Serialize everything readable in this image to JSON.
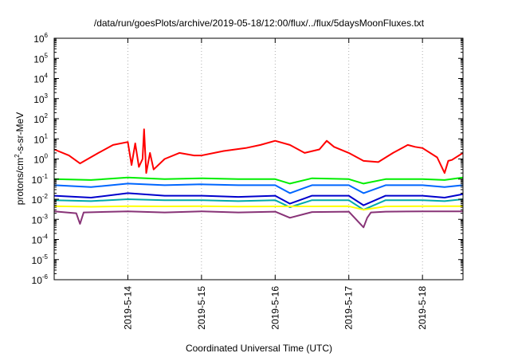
{
  "chart_data": {
    "type": "line",
    "title": "/data/run/goesPlots/archive/2019-05-18/12:00/flux/../flux/5daysMoonFluxes.txt",
    "xlabel": "Coordinated Universal Time (UTC)",
    "ylabel": "protons/cm²-s-sr-MeV",
    "ylabel_parts": {
      "base": "protons/cm",
      "sup": "2",
      "rest": "-s-sr-MeV"
    },
    "yscale": "log",
    "ylim_exp": [
      -6,
      6
    ],
    "ytick_labels": [
      {
        "base": "10",
        "exp": "-6"
      },
      {
        "base": "10",
        "exp": "-5"
      },
      {
        "base": "10",
        "exp": "-4"
      },
      {
        "base": "10",
        "exp": "-3"
      },
      {
        "base": "10",
        "exp": "-2"
      },
      {
        "base": "10",
        "exp": "-1"
      },
      {
        "base": "10",
        "exp": "0"
      },
      {
        "base": "10",
        "exp": "1"
      },
      {
        "base": "10",
        "exp": "2"
      },
      {
        "base": "10",
        "exp": "3"
      },
      {
        "base": "10",
        "exp": "4"
      },
      {
        "base": "10",
        "exp": "5"
      },
      {
        "base": "10",
        "exp": "6"
      }
    ],
    "x_range_days": [
      13.0,
      18.55
    ],
    "xtick_labels": [
      "2019-5-14",
      "2019-5-15",
      "2019-5-16",
      "2019-5-17",
      "2019-5-18"
    ],
    "xtick_days": [
      14,
      15,
      16,
      17,
      18
    ],
    "grid": "vertical-dotted",
    "legend": "none",
    "series": [
      {
        "color": "#ff0000",
        "x": [
          13.0,
          13.2,
          13.35,
          13.6,
          13.8,
          14.0,
          14.05,
          14.1,
          14.15,
          14.2,
          14.22,
          14.25,
          14.3,
          14.35,
          14.5,
          14.7,
          14.9,
          15.0,
          15.3,
          15.6,
          15.8,
          16.0,
          16.2,
          16.4,
          16.6,
          16.7,
          16.8,
          17.0,
          17.2,
          17.4,
          17.6,
          17.8,
          17.9,
          18.0,
          18.2,
          18.3,
          18.35,
          18.4,
          18.55
        ],
        "y": [
          3,
          1.5,
          0.6,
          2,
          5,
          7,
          0.5,
          6,
          0.4,
          1,
          30,
          0.2,
          2,
          0.3,
          1,
          2,
          1.5,
          1.5,
          2.5,
          3.5,
          5,
          8,
          5,
          2,
          3,
          8,
          4,
          2,
          0.8,
          0.7,
          2,
          5,
          4,
          3.5,
          1.2,
          0.2,
          0.8,
          0.9,
          2
        ]
      },
      {
        "color": "#00ee00",
        "x": [
          13.0,
          13.5,
          14.0,
          14.5,
          15.0,
          15.5,
          16.0,
          16.2,
          16.5,
          17.0,
          17.2,
          17.5,
          18.0,
          18.3,
          18.55
        ],
        "y": [
          0.1,
          0.09,
          0.12,
          0.1,
          0.11,
          0.1,
          0.1,
          0.06,
          0.11,
          0.1,
          0.06,
          0.1,
          0.1,
          0.09,
          0.12
        ]
      },
      {
        "color": "#0066ff",
        "x": [
          13.0,
          13.5,
          14.0,
          14.5,
          15.0,
          15.5,
          16.0,
          16.2,
          16.5,
          17.0,
          17.2,
          17.5,
          18.0,
          18.3,
          18.55
        ],
        "y": [
          0.05,
          0.04,
          0.06,
          0.05,
          0.055,
          0.05,
          0.05,
          0.02,
          0.05,
          0.05,
          0.02,
          0.05,
          0.05,
          0.04,
          0.05
        ]
      },
      {
        "color": "#0000cc",
        "x": [
          13.0,
          13.5,
          14.0,
          14.5,
          15.0,
          15.5,
          16.0,
          16.2,
          16.5,
          17.0,
          17.2,
          17.5,
          18.0,
          18.3,
          18.55
        ],
        "y": [
          0.015,
          0.012,
          0.02,
          0.015,
          0.015,
          0.013,
          0.015,
          0.006,
          0.015,
          0.015,
          0.005,
          0.015,
          0.015,
          0.012,
          0.018
        ]
      },
      {
        "color": "#00aaaa",
        "x": [
          13.0,
          13.5,
          14.0,
          14.5,
          15.0,
          15.5,
          16.0,
          16.2,
          16.5,
          17.0,
          17.2,
          17.5,
          18.0,
          18.3,
          18.55
        ],
        "y": [
          0.009,
          0.008,
          0.01,
          0.009,
          0.009,
          0.008,
          0.009,
          0.004,
          0.009,
          0.009,
          0.003,
          0.009,
          0.009,
          0.008,
          0.01
        ]
      },
      {
        "color": "#ffff00",
        "x": [
          13.0,
          13.5,
          14.0,
          14.5,
          15.0,
          15.5,
          16.0,
          16.5,
          17.0,
          17.2,
          17.5,
          18.0,
          18.55
        ],
        "y": [
          0.0045,
          0.0042,
          0.0045,
          0.0044,
          0.0045,
          0.0043,
          0.0044,
          0.0044,
          0.0045,
          0.003,
          0.0044,
          0.0045,
          0.0045
        ]
      },
      {
        "color": "#883377",
        "x": [
          13.0,
          13.3,
          13.35,
          13.4,
          14.0,
          14.5,
          15.0,
          15.5,
          16.0,
          16.2,
          16.5,
          17.0,
          17.2,
          17.25,
          17.3,
          17.5,
          18.0,
          18.55
        ],
        "y": [
          0.0025,
          0.002,
          0.0006,
          0.0022,
          0.0025,
          0.0022,
          0.0025,
          0.0022,
          0.0024,
          0.0012,
          0.0023,
          0.0024,
          0.0004,
          0.0012,
          0.0022,
          0.0024,
          0.0025,
          0.0025
        ]
      }
    ]
  }
}
